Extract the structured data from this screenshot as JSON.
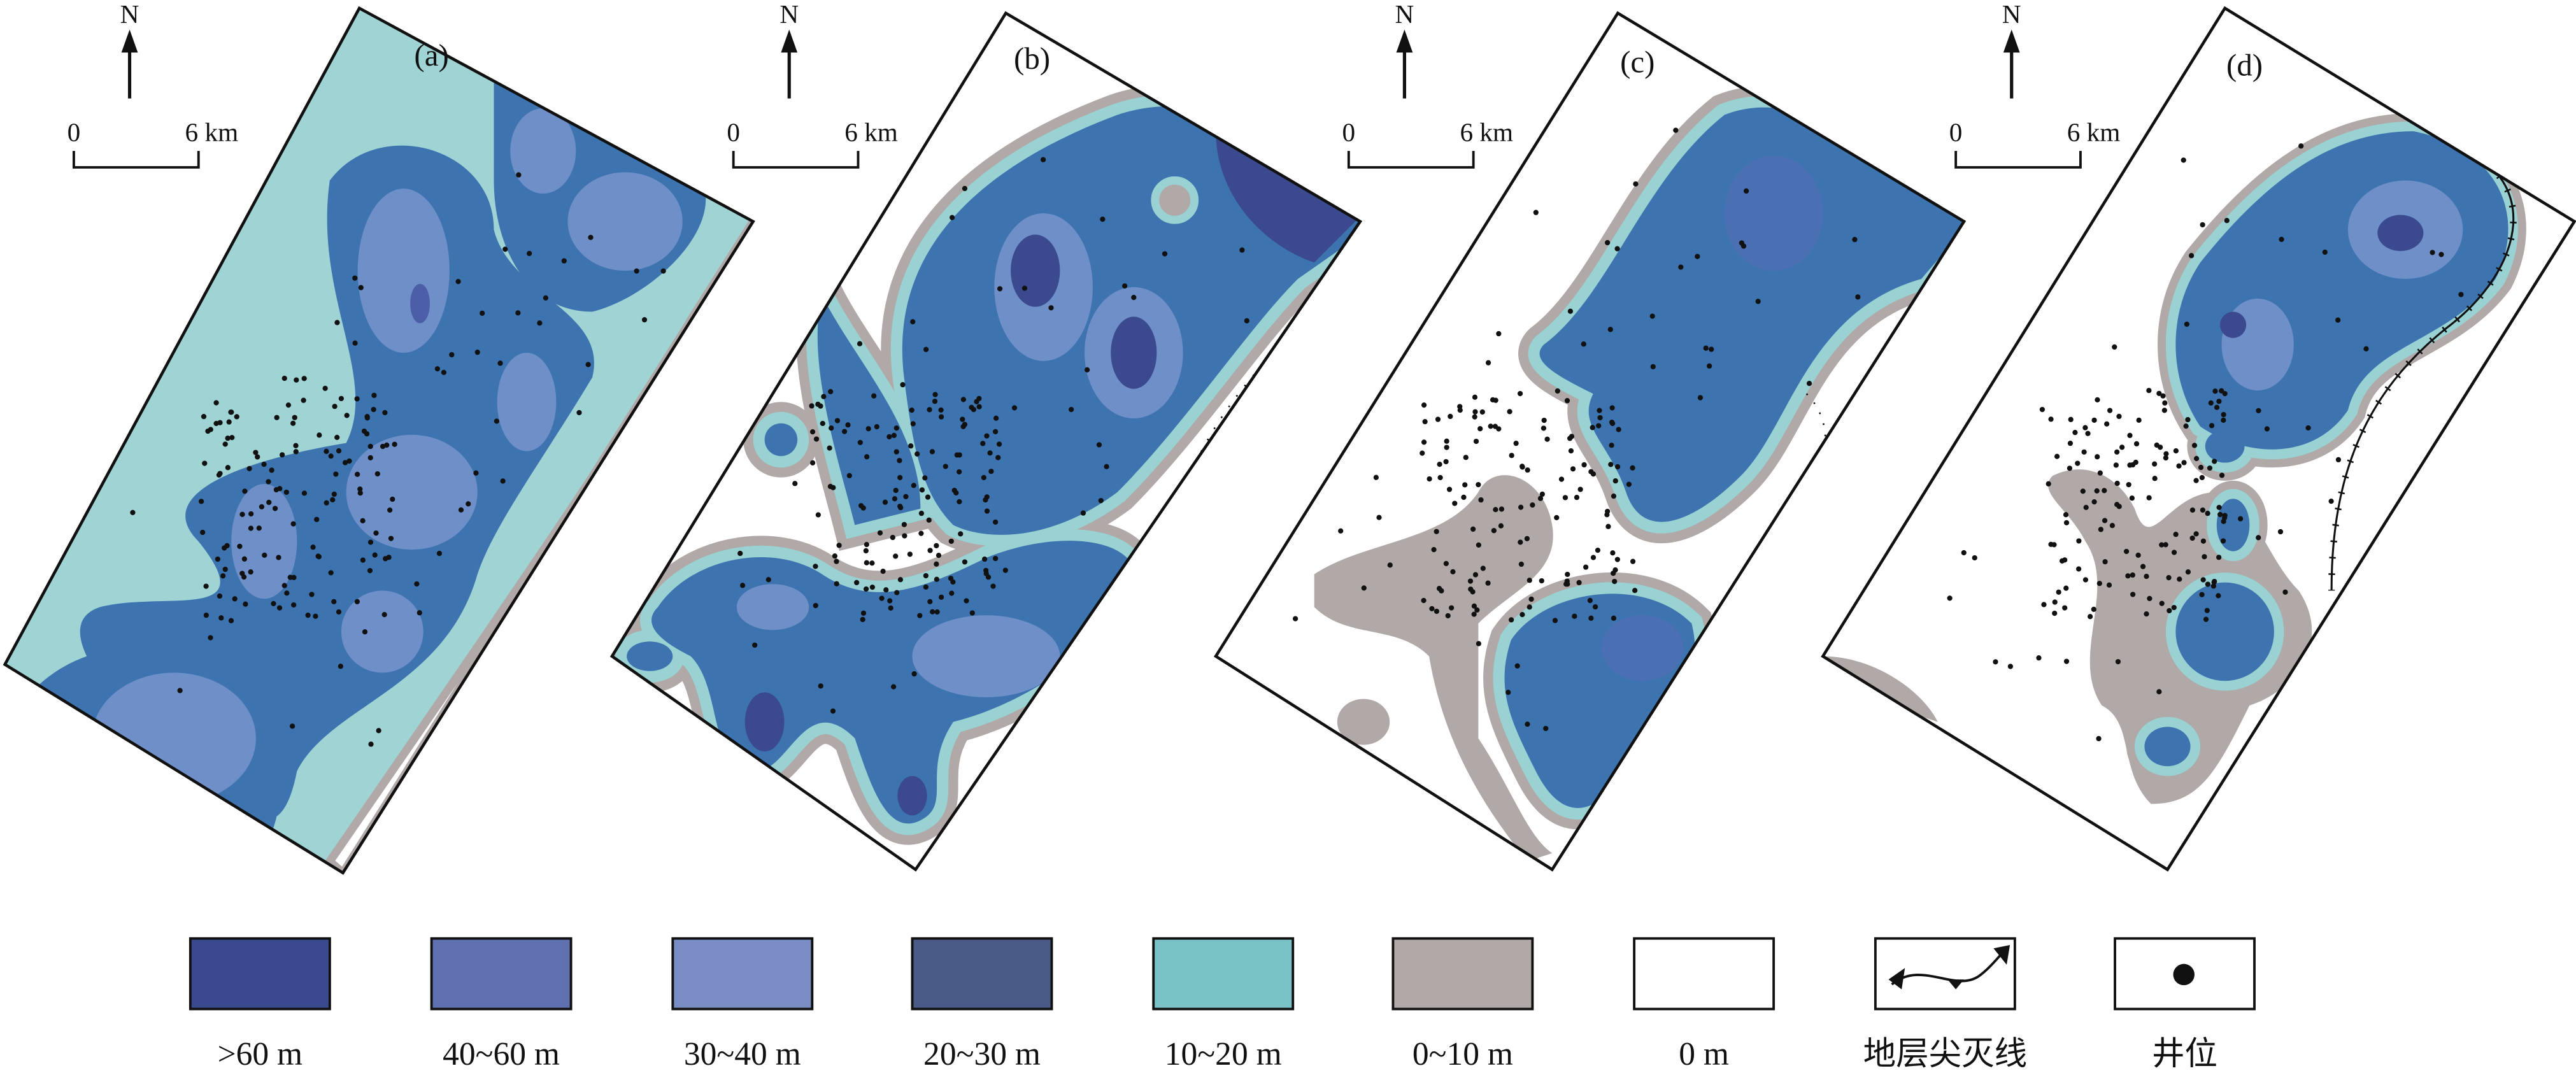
{
  "panels": [
    {
      "label": "(a)",
      "north": "N",
      "scale": {
        "start": "0",
        "end": "6 km"
      }
    },
    {
      "label": "(b)",
      "north": "N",
      "scale": {
        "start": "0",
        "end": "6 km"
      }
    },
    {
      "label": "(c)",
      "north": "N",
      "scale": {
        "start": "0",
        "end": "6 km"
      }
    },
    {
      "label": "(d)",
      "north": "N",
      "scale": {
        "start": "0",
        "end": "6 km"
      }
    }
  ],
  "legend": [
    {
      "label": ">60 m",
      "color": "#3b4a8e"
    },
    {
      "label": "40~60 m",
      "color": "#5f70b0"
    },
    {
      "label": "30~40 m",
      "color": "#7a8cc4"
    },
    {
      "label": "20~30 m",
      "color": "#4a5b87"
    },
    {
      "label": "10~20 m",
      "color": "#79c3c7"
    },
    {
      "label": "0~10 m",
      "color": "#b0a9a7"
    },
    {
      "label": "0 m",
      "color": "#ffffff"
    },
    {
      "label": "地层尖灭线"
    },
    {
      "label": "井位"
    }
  ]
}
